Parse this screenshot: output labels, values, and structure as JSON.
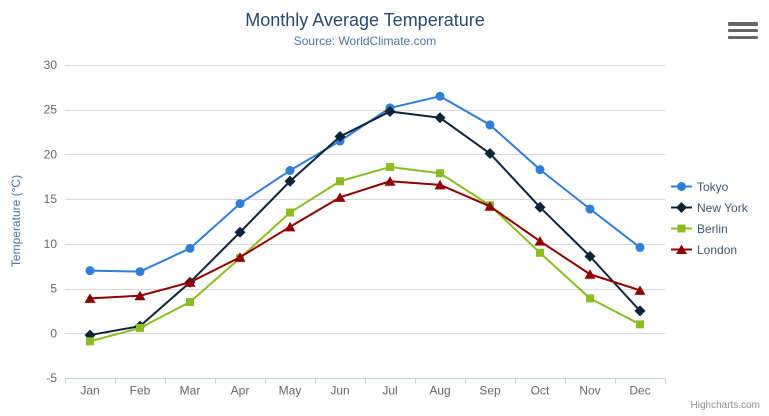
{
  "credits": "Highcharts.com",
  "context_menu": {
    "icon": "hamburger-icon"
  },
  "chart_data": {
    "type": "line",
    "title": "Monthly Average Temperature",
    "subtitle": "Source: WorldClimate.com",
    "categories": [
      "Jan",
      "Feb",
      "Mar",
      "Apr",
      "May",
      "Jun",
      "Jul",
      "Aug",
      "Sep",
      "Oct",
      "Nov",
      "Dec"
    ],
    "xlabel": "",
    "ylabel": "Temperature (°C)",
    "ylim": [
      -5,
      30
    ],
    "yticks": [
      -5,
      0,
      5,
      10,
      15,
      20,
      25,
      30
    ],
    "grid": true,
    "legend_position": "right-middle",
    "series": [
      {
        "name": "Tokyo",
        "color": "#2f7ed8",
        "marker": "circle",
        "values": [
          7.0,
          6.9,
          9.5,
          14.5,
          18.2,
          21.5,
          25.2,
          26.5,
          23.3,
          18.3,
          13.9,
          9.6
        ]
      },
      {
        "name": "New York",
        "color": "#0d233a",
        "marker": "diamond",
        "values": [
          -0.2,
          0.8,
          5.7,
          11.3,
          17.0,
          22.0,
          24.8,
          24.1,
          20.1,
          14.1,
          8.6,
          2.5
        ]
      },
      {
        "name": "Berlin",
        "color": "#8bbc21",
        "marker": "square",
        "values": [
          -0.9,
          0.6,
          3.5,
          8.4,
          13.5,
          17.0,
          18.6,
          17.9,
          14.3,
          9.0,
          3.9,
          1.0
        ]
      },
      {
        "name": "London",
        "color": "#910000",
        "marker": "triangle",
        "values": [
          3.9,
          4.2,
          5.7,
          8.5,
          11.9,
          15.2,
          17.0,
          16.6,
          14.2,
          10.3,
          6.6,
          4.8
        ]
      }
    ]
  },
  "theme": {
    "title_color": "#274b6d",
    "subtitle_color": "#4d759e",
    "axis_title_color": "#4d759e",
    "tick_label_color": "#666666",
    "grid_color": "#d8d8d8",
    "axis_line_color": "#c0d0e0",
    "legend_text_color": "#3e576f",
    "credits_color": "#909090",
    "background": "#ffffff"
  }
}
